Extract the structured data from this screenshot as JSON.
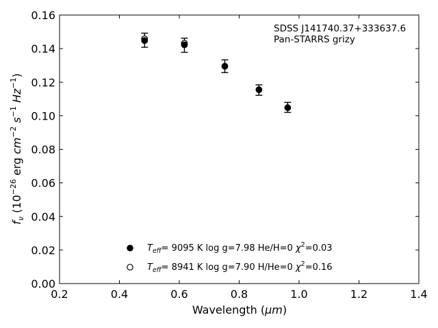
{
  "chart_data": {
    "type": "scatter",
    "title": "",
    "xlabel_text": "Wavelength (",
    "xlabel_unit": "μm",
    "xlabel_close": ")",
    "ylabel_f": "f",
    "ylabel_sub": "ν",
    "ylabel_open": " (10",
    "ylabel_exp1": "−26",
    "ylabel_erg": " erg ",
    "ylabel_cm": "cm",
    "ylabel_exp2": "−2",
    "ylabel_s": " s",
    "ylabel_exp3": "−1",
    "ylabel_hz": " Hz",
    "ylabel_exp4": "−1",
    "ylabel_close": ")",
    "xlim": [
      0.2,
      1.4
    ],
    "ylim": [
      0.0,
      0.16
    ],
    "xticks": [
      "0.2",
      "0.4",
      "0.6",
      "0.8",
      "1.0",
      "1.2",
      "1.4"
    ],
    "yticks": [
      "0.00",
      "0.02",
      "0.04",
      "0.06",
      "0.08",
      "0.10",
      "0.12",
      "0.14",
      "0.16"
    ],
    "grid": false,
    "annotation_lines": [
      "SDSS J141740.37+333637.6",
      "Pan-STARRS grizy"
    ],
    "observed": {
      "x": [
        0.484,
        0.617,
        0.752,
        0.866,
        0.962
      ],
      "y": [
        0.145,
        0.142,
        0.1295,
        0.1153,
        0.105
      ],
      "err": [
        0.0042,
        0.0042,
        0.0038,
        0.0031,
        0.003
      ]
    },
    "series": [
      {
        "marker": "filled",
        "x": [
          0.484,
          0.617,
          0.752,
          0.866,
          0.962
        ],
        "y": [
          0.1448,
          0.1423,
          0.1295,
          0.1155,
          0.1048
        ],
        "legend": {
          "teff_symbol": "T",
          "teff_sub": "eff",
          "teff_eq": "=  9095 K  log g=7.98  He/H=0  ",
          "chi_symbol": "χ",
          "chi_exp": "2",
          "chi_value": "=0.03"
        }
      },
      {
        "marker": "open",
        "x": [
          0.484,
          0.617
        ],
        "y": [
          0.1458,
          0.1432
        ],
        "legend": {
          "teff_symbol": "T",
          "teff_sub": "eff",
          "teff_eq": "=  8941 K  log g=7.90  H/He=0  ",
          "chi_symbol": "χ",
          "chi_exp": "2",
          "chi_value": "=0.16"
        }
      }
    ],
    "legend_position": "bottom-center"
  }
}
